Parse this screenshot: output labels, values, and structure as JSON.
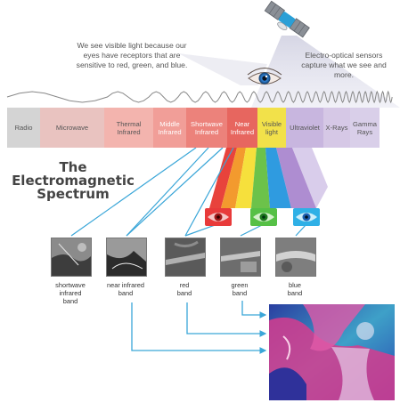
{
  "annotations": {
    "visible_light_note": "We see visible light because our eyes have receptors that are sensitive to red, green, and blue.",
    "sensor_note": "Electro-optical sensors capture what we see and more."
  },
  "title": {
    "line1": "The",
    "line2": "Electromagnetic",
    "line3": "Spectrum"
  },
  "spectrum": [
    {
      "label": "Radio",
      "color": "#d4d4d4"
    },
    {
      "label": "Microwave",
      "color": "#e9c3c0"
    },
    {
      "label": "Thermal\nInfrared",
      "color": "#f3b4ae"
    },
    {
      "label": "Middle\nInfrared",
      "color": "#f19e98"
    },
    {
      "label": "Shortwave\nInfrared",
      "color": "#ec827b"
    },
    {
      "label": "Near\nInfrared",
      "color": "#e7665f"
    },
    {
      "label": "Visible\nlight",
      "color": "#f2e14a"
    },
    {
      "label": "Ultraviolet",
      "color": "#c8b6df"
    },
    {
      "label": "X-Rays",
      "color": "#d6c8e6"
    },
    {
      "label": "Gamma\nRays",
      "color": "#d9cfe9"
    }
  ],
  "bands": [
    {
      "label": "shortwave\ninfrared\nband"
    },
    {
      "label": "near infrared\nband"
    },
    {
      "label": "red\nband"
    },
    {
      "label": "green\nband"
    },
    {
      "label": "blue\nband"
    }
  ],
  "colors": {
    "arrow": "#3aa6d8",
    "beam_red": "#e8433c",
    "beam_orange": "#f39a2e",
    "beam_yellow": "#f6e03c",
    "beam_green": "#6cc24a",
    "beam_blue": "#2f9be0",
    "beam_violet": "#a079c9"
  },
  "icons": {
    "satellite": "satellite-icon",
    "eye": "eye-icon"
  }
}
